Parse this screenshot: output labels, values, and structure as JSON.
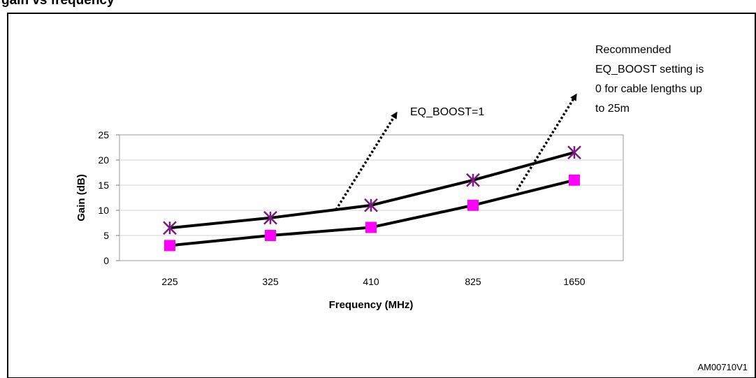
{
  "figure": {
    "title_fragment": "gain vs frequency",
    "code": "AM00710V1"
  },
  "chart_data": {
    "type": "line",
    "categories": [
      "225",
      "325",
      "410",
      "825",
      "1650"
    ],
    "series": [
      {
        "values": [
          6.5,
          8.5,
          11,
          16,
          21.5
        ],
        "marker": "asterisk",
        "marker_color": "#7a1a80"
      },
      {
        "values": [
          3,
          5,
          6.6,
          11,
          16
        ],
        "marker": "square",
        "marker_color": "#ff00ff"
      }
    ],
    "xlabel": "Frequency (MHz)",
    "ylabel": "Gain (dB)",
    "ylim": [
      0,
      25
    ],
    "yticks": [
      0,
      5,
      10,
      15,
      20,
      25
    ],
    "grid": true,
    "line_color": "#000000",
    "annotations": [
      {
        "text_lines": [
          "EQ_BOOST=1"
        ]
      },
      {
        "text_lines": [
          "Recommended",
          "EQ_BOOST setting is",
          "0 for cable lengths up",
          "to 25m"
        ]
      }
    ]
  }
}
